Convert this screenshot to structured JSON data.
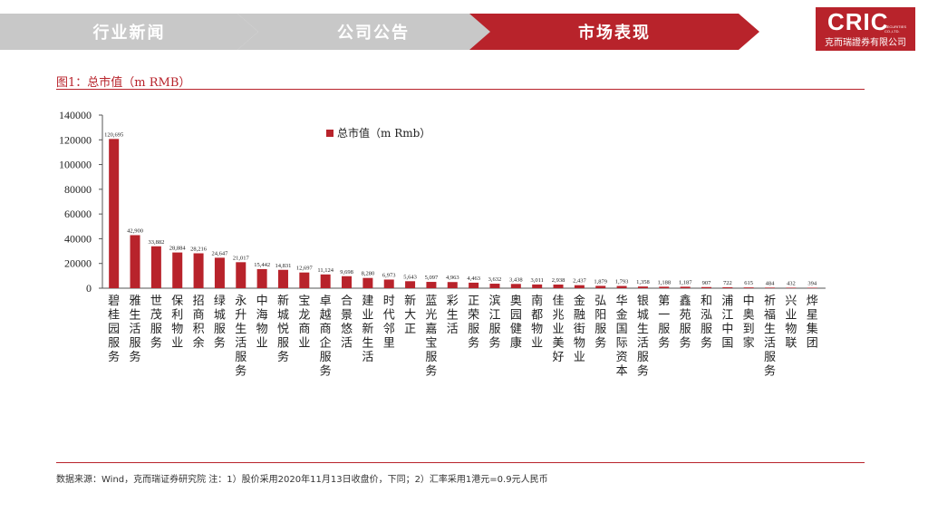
{
  "nav": {
    "tabs": [
      {
        "label": "行业新闻",
        "active": false
      },
      {
        "label": "公司公告",
        "active": false
      },
      {
        "label": "市场表现",
        "active": true
      }
    ]
  },
  "logo": {
    "main": "CRIC",
    "tag": "SECURITIES CO.,LTD.",
    "sub": "克而瑞證券有限公司"
  },
  "figure": {
    "title": "图1：总市值（m RMB）"
  },
  "source_note": "数据来源：Wind，克而瑞证券研究院   注：1）股价采用2020年11月13日收盘价，下同；2）汇率采用1港元=0.9元人民币",
  "colors": {
    "accent": "#b8232b",
    "tab_inactive": "#c8c8c8",
    "bar": "#b8232b"
  },
  "chart_data": {
    "type": "bar",
    "legend": "总市值（m Rmb）",
    "legend_position": "top-center",
    "ylim": [
      0,
      140000
    ],
    "yticks": [
      "0",
      "20000",
      "40000",
      "60000",
      "80000",
      "100000",
      "120000",
      "140000"
    ],
    "categories": [
      "碧桂园服务",
      "雅生活服务",
      "世茂服务",
      "保利物业",
      "招商积余",
      "绿城服务",
      "永升生活服务",
      "中海物业",
      "新城悦服务",
      "宝龙商业",
      "卓越商企服务",
      "合景悠活",
      "建业新生活",
      "时代邻里",
      "新大正",
      "蓝光嘉宝服务",
      "彩生活",
      "正荣服务",
      "滨江服务",
      "奥园健康",
      "南都物业",
      "佳兆业美好",
      "金融街物业",
      "弘阳服务",
      "华金国际资本",
      "银城生活服务",
      "第一服务",
      "鑫苑服务",
      "和泓服务",
      "浦江中国",
      "中奥到家",
      "祈福生活服务",
      "兴业物联",
      "烨星集团"
    ],
    "values": [
      120695,
      42900,
      33882,
      28884,
      28216,
      24647,
      21017,
      15442,
      14831,
      12697,
      11124,
      9698,
      8280,
      6973,
      5643,
      5097,
      4963,
      4463,
      3632,
      3438,
      3011,
      2938,
      2437,
      1879,
      1793,
      1358,
      1188,
      1187,
      907,
      722,
      615,
      484,
      432,
      394
    ],
    "data_labels": [
      "120,695",
      "42,900",
      "33,882",
      "28,884",
      "28,216",
      "24,647",
      "21,017",
      "15,442",
      "14,831",
      "12,697",
      "11,124",
      "9,698",
      "8,280",
      "6,973",
      "5,643",
      "5,097",
      "4,963",
      "4,463",
      "3,632",
      "3,438",
      "3,011",
      "2,938",
      "2,437",
      "1,879",
      "1,793",
      "1,358",
      "1,188",
      "1,187",
      "907",
      "722",
      "615",
      "484",
      "432",
      "394"
    ]
  }
}
